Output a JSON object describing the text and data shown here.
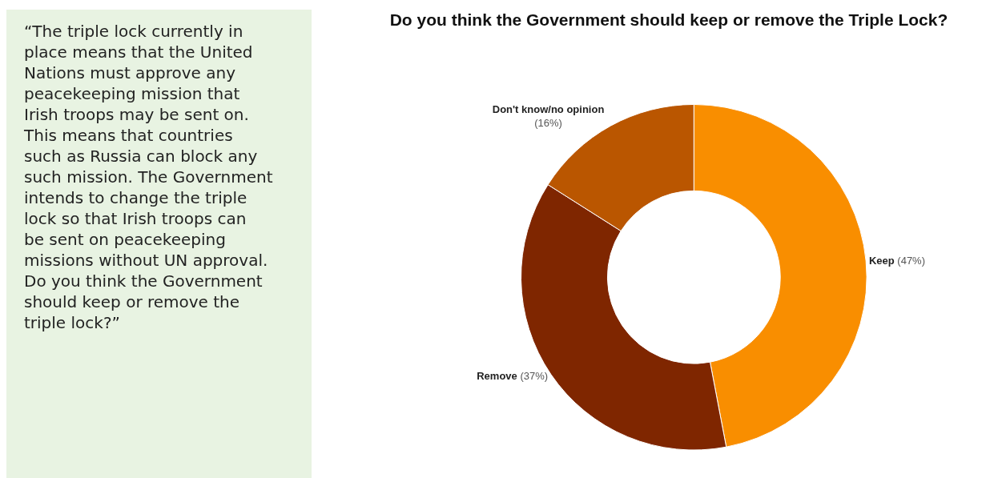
{
  "chart_data": {
    "type": "donut",
    "title": "Do you think the Government should keep or remove the Triple Lock?",
    "categories": [
      "Keep",
      "Remove",
      "Don't know/no opinion"
    ],
    "values": [
      47,
      37,
      16
    ],
    "value_labels": [
      "(47%)",
      "(37%)",
      "(16%)"
    ],
    "colors": [
      "#f98e00",
      "#7f2600",
      "#ba5600"
    ],
    "annotations": [
      "“The triple lock currently in place means that the United Nations must approve any peacekeeping mission that Irish troops may be sent on. This means that countries such as Russia can block any such mission. The Government intends to change the triple lock so that Irish troops can be sent on peacekeeping missions without UN approval. Do you think the Government should keep or remove the triple lock?”"
    ],
    "legend": false
  }
}
